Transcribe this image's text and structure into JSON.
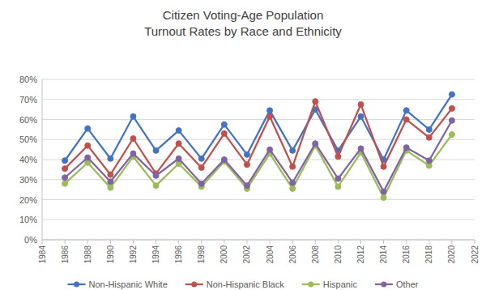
{
  "chart_data": {
    "type": "line",
    "title": "Citizen Voting-Age Population",
    "subtitle": "Turnout Rates by Race and Ethnicity",
    "x": [
      1986,
      1988,
      1990,
      1992,
      1994,
      1996,
      1998,
      2000,
      2002,
      2004,
      2006,
      2008,
      2010,
      2012,
      2014,
      2016,
      2018,
      2020
    ],
    "series": [
      {
        "name": "Non-Hispanic White",
        "color": "#4472c4",
        "marker": "circle",
        "values": [
          39.5,
          55.5,
          40.5,
          61.5,
          44.5,
          54.5,
          40.5,
          57.5,
          42.5,
          64.5,
          44.5,
          65,
          44.5,
          61.5,
          40,
          64.5,
          55,
          72.5
        ]
      },
      {
        "name": "Non-Hispanic Black",
        "color": "#c0504d",
        "marker": "circle",
        "values": [
          35.5,
          47,
          32.5,
          50.5,
          33,
          48,
          36,
          53,
          37.5,
          61.5,
          36.5,
          69,
          41.5,
          67.5,
          36.5,
          60,
          51,
          65.5
        ]
      },
      {
        "name": "Hispanic",
        "color": "#9bbb59",
        "marker": "circle",
        "values": [
          28,
          38.5,
          26,
          41.5,
          27,
          38,
          26.5,
          39,
          25.5,
          43,
          25.5,
          47,
          26.5,
          43.5,
          21,
          44.5,
          37,
          52.5
        ]
      },
      {
        "name": "Other",
        "color": "#8064a2",
        "marker": "circle",
        "values": [
          31,
          41,
          29,
          43,
          32,
          40.5,
          28,
          40,
          27,
          45,
          28.5,
          48,
          30.5,
          45.5,
          24,
          46,
          39.5,
          59.5
        ]
      }
    ],
    "xlim": [
      1984,
      2022
    ],
    "xticks": [
      1984,
      1986,
      1988,
      1990,
      1992,
      1994,
      1996,
      1998,
      2000,
      2002,
      2004,
      2006,
      2008,
      2010,
      2012,
      2014,
      2016,
      2018,
      2020,
      2022
    ],
    "ylim": [
      0,
      80
    ],
    "yticks": [
      {
        "value": 0,
        "label": "0%"
      },
      {
        "value": 10,
        "label": "10%"
      },
      {
        "value": 20,
        "label": "20%"
      },
      {
        "value": 30,
        "label": "30%"
      },
      {
        "value": 40,
        "label": "40%"
      },
      {
        "value": 50,
        "label": "50%"
      },
      {
        "value": 60,
        "label": "60%"
      },
      {
        "value": 70,
        "label": "70%"
      },
      {
        "value": 80,
        "label": "80%"
      }
    ],
    "grid": true,
    "legend": "bottom"
  }
}
